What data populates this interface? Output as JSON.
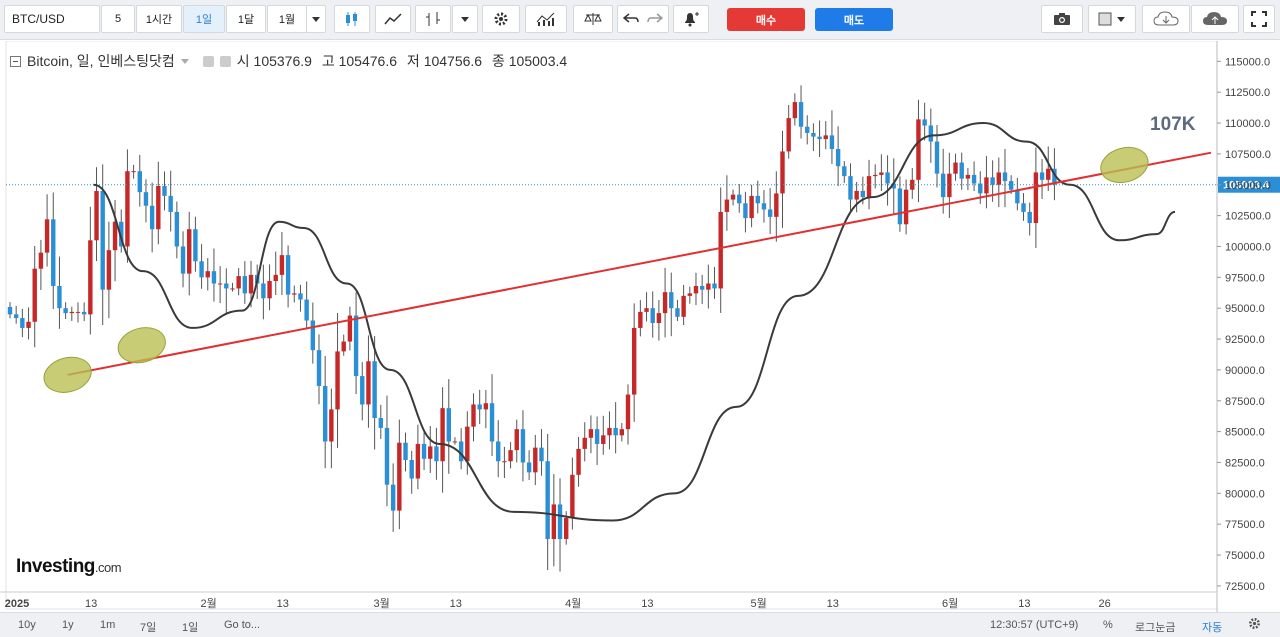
{
  "toolbar": {
    "symbol": "BTC/USD",
    "intervals": [
      "5",
      "1시간",
      "1일",
      "1달",
      "1월"
    ],
    "active_interval": "1일",
    "buy_label": "매수",
    "sell_label": "매도",
    "icons": [
      "candlestick-icon",
      "area-chart-icon",
      "bar-chart-icon",
      "dropdown-icon",
      "settings-gear-icon",
      "indicators-icon",
      "compare-scale-icon",
      "undo-icon",
      "redo-icon",
      "alert-bell-icon",
      "camera-icon",
      "template-square-icon",
      "cloud-download-icon",
      "cloud-upload-icon",
      "fullscreen-icon"
    ]
  },
  "legend": {
    "title": "Bitcoin, 일, 인베스팅닷컴",
    "open_label": "시",
    "open": "105376.9",
    "high_label": "고",
    "high": "105476.6",
    "low_label": "저",
    "low": "104756.6",
    "close_label": "종",
    "close": "105003.4"
  },
  "annotation_text": "107K",
  "logo": {
    "main": "Investing",
    "suffix": ".com"
  },
  "bottom": {
    "ranges": [
      "10y",
      "1y",
      "1m",
      "7일",
      "1일",
      "Go to..."
    ],
    "time": "12:30:57 (UTC+9)",
    "pct": "%",
    "log": "로그눈금",
    "auto": "자동"
  },
  "colors": {
    "up": "#c62828",
    "down": "#2b8fd6",
    "trendline": "#e03030",
    "ellipse_fill": "#b9bf52",
    "current_price_bg": "#2b8fd6"
  },
  "chart_data": {
    "type": "candlestick",
    "y_range": [
      72500,
      116000
    ],
    "y_ticks": [
      72500,
      75000,
      77500,
      80000,
      82500,
      85000,
      87500,
      90000,
      92500,
      95000,
      97500,
      100000,
      102500,
      105000,
      107500,
      110000,
      112500,
      115000
    ],
    "y_tick_labels": [
      "72500.0",
      "75000.0",
      "77500.0",
      "80000.0",
      "82500.0",
      "85000.0",
      "87500.0",
      "90000.0",
      "92500.0",
      "95000.0",
      "97500.0",
      "100000.0",
      "102500.0",
      "105000.0",
      "107500.0",
      "110000.0",
      "112500.0",
      "115000.0"
    ],
    "x_tick_labels": [
      {
        "label": "2025",
        "day": 0
      },
      {
        "label": "13",
        "day": 12
      },
      {
        "label": "2월",
        "day": 31
      },
      {
        "label": "13",
        "day": 43
      },
      {
        "label": "3월",
        "day": 59
      },
      {
        "label": "13",
        "day": 71
      },
      {
        "label": "4월",
        "day": 90
      },
      {
        "label": "13",
        "day": 102
      },
      {
        "label": "5월",
        "day": 120
      },
      {
        "label": "13",
        "day": 132
      },
      {
        "label": "6월",
        "day": 151
      },
      {
        "label": "13",
        "day": 163
      },
      {
        "label": "26",
        "day": 176
      }
    ],
    "current_price": 105003.4,
    "current_price_label": "105003.4",
    "closes": [
      94500,
      94200,
      93400,
      93900,
      98200,
      99500,
      102200,
      96800,
      95000,
      94600,
      94700,
      94700,
      94500,
      100500,
      104500,
      96500,
      99700,
      102000,
      100000,
      106100,
      106100,
      104400,
      103300,
      101400,
      104900,
      104100,
      102800,
      100000,
      97800,
      101400,
      98800,
      97500,
      98000,
      97000,
      97000,
      96600,
      96600,
      97600,
      96200,
      97700,
      97000,
      95800,
      97200,
      97700,
      99300,
      96100,
      96200,
      95700,
      94000,
      91600,
      88700,
      84200,
      86800,
      91500,
      92300,
      94400,
      89500,
      87200,
      90700,
      86100,
      85300,
      80700,
      78600,
      84100,
      82700,
      81200,
      84000,
      82800,
      83800,
      82600,
      86900,
      84200,
      84200,
      82600,
      85400,
      87200,
      86800,
      87300,
      84200,
      82600,
      82600,
      83500,
      85200,
      82500,
      81700,
      83700,
      82600,
      76300,
      79100,
      76300,
      78000,
      81500,
      83600,
      84500,
      85200,
      84000,
      84700,
      85300,
      84700,
      85200,
      88000,
      93400,
      94700,
      95000,
      93800,
      94600,
      96300,
      95000,
      94300,
      96000,
      96200,
      96800,
      96500,
      97000,
      96600,
      102800,
      103800,
      104200,
      103500,
      102300,
      104100,
      103500,
      103000,
      102400,
      104300,
      107700,
      110400,
      111700,
      109700,
      109200,
      108900,
      108700,
      109000,
      107900,
      106500,
      105700,
      103800,
      104500,
      104000,
      105700,
      105800,
      106000,
      105100,
      104700,
      101800,
      104600,
      105400,
      110300,
      109800,
      108500,
      105900,
      104000,
      105900,
      106800,
      105500,
      105800,
      105100,
      104300,
      105600,
      105000,
      106000,
      105300,
      104600,
      103500,
      102800,
      101900,
      106000,
      105400,
      106300,
      105000
    ],
    "trendline": {
      "start_day": 9,
      "start_price": 89600,
      "end_day": 190,
      "end_price": 107600
    },
    "wave_curve": "black sine-like overlay curve",
    "ellipses": [
      {
        "day": 9,
        "price": 89600
      },
      {
        "day": 21,
        "price": 92000
      },
      {
        "day": 180,
        "price": 106600
      }
    ]
  }
}
